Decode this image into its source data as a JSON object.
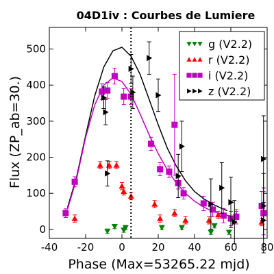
{
  "chart_data": {
    "type": "scatter",
    "title": "04D1iv : Courbes de Lumiere",
    "xlabel": "Phase (Max=53265.22 mjd)",
    "ylabel": "Flux (ZP_ab=30.)",
    "xlim": [
      -40,
      80
    ],
    "ylim": [
      -25,
      560
    ],
    "x_ticks": [
      -40,
      -20,
      0,
      20,
      40,
      60,
      80
    ],
    "y_ticks": [
      0,
      100,
      200,
      300,
      400,
      500
    ],
    "legend_position": "top-right",
    "vline_x": 5,
    "series": [
      {
        "name": "g (V2.2)",
        "marker": "triangle-down",
        "color": "#008000",
        "points": [
          {
            "x": -8,
            "y": -5,
            "err": 6
          },
          {
            "x": -4,
            "y": 8,
            "err": 6
          },
          {
            "x": 1,
            "y": -2,
            "err": 6
          },
          {
            "x": 2,
            "y": 5,
            "err": 6
          },
          {
            "x": 22,
            "y": 5,
            "err": 6
          },
          {
            "x": 33,
            "y": 5,
            "err": 6
          },
          {
            "x": 49,
            "y": -8,
            "err": 6
          },
          {
            "x": 51,
            "y": 10,
            "err": 6
          },
          {
            "x": 59,
            "y": -8,
            "err": 6
          }
        ]
      },
      {
        "name": "r (V2.2)",
        "marker": "triangle-up",
        "color": "#ff0000",
        "points": [
          {
            "x": -26,
            "y": 30,
            "err": 10
          },
          {
            "x": -12,
            "y": 178,
            "err": 10
          },
          {
            "x": -7,
            "y": 178,
            "err": 10
          },
          {
            "x": -3,
            "y": 178,
            "err": 10
          },
          {
            "x": 0,
            "y": 120,
            "err": 10
          },
          {
            "x": 1,
            "y": 105,
            "err": 10
          },
          {
            "x": 5,
            "y": 92,
            "err": 10
          },
          {
            "x": 18,
            "y": 70,
            "err": 10
          },
          {
            "x": 21,
            "y": 30,
            "err": 10
          },
          {
            "x": 29,
            "y": 45,
            "err": 10
          },
          {
            "x": 35,
            "y": 25,
            "err": 10
          },
          {
            "x": 48,
            "y": 25,
            "err": 10
          },
          {
            "x": 53,
            "y": 40,
            "err": 10
          },
          {
            "x": 63,
            "y": 40,
            "err": 10
          },
          {
            "x": 77,
            "y": 20,
            "err": 10
          }
        ]
      },
      {
        "name": "i (V2.2)",
        "marker": "square",
        "color": "#bf00bf",
        "points": [
          {
            "x": -31,
            "y": 45,
            "err": 12
          },
          {
            "x": -26,
            "y": 132,
            "err": 14
          },
          {
            "x": -11,
            "y": 382,
            "err": 22
          },
          {
            "x": -8,
            "y": 385,
            "err": 22
          },
          {
            "x": -4,
            "y": 425,
            "err": 22
          },
          {
            "x": 1,
            "y": 368,
            "err": 22
          },
          {
            "x": 5,
            "y": 368,
            "err": 22
          },
          {
            "x": 16,
            "y": 237,
            "err": 18
          },
          {
            "x": 21,
            "y": 167,
            "err": 18
          },
          {
            "x": 26,
            "y": 160,
            "err": 16
          },
          {
            "x": 29,
            "y": 290,
            "err": 140
          },
          {
            "x": 31,
            "y": 128,
            "err": 16
          },
          {
            "x": 34,
            "y": 100,
            "err": 16
          },
          {
            "x": 45,
            "y": 72,
            "err": 20
          },
          {
            "x": 50,
            "y": 55,
            "err": 20
          },
          {
            "x": 56,
            "y": 38,
            "err": 20
          },
          {
            "x": 60,
            "y": 30,
            "err": 20
          },
          {
            "x": 63,
            "y": 35,
            "err": 20
          },
          {
            "x": 77,
            "y": 65,
            "err": 40
          },
          {
            "x": 78,
            "y": 45,
            "err": 60
          }
        ]
      },
      {
        "name": "z (V2.2)",
        "marker": "triangle-right",
        "color": "#000000",
        "points": [
          {
            "x": -10,
            "y": 365,
            "err": 30
          },
          {
            "x": -9,
            "y": 325,
            "err": 35
          },
          {
            "x": -8,
            "y": 155,
            "err": 35
          },
          {
            "x": 5,
            "y": 445,
            "err": 40
          },
          {
            "x": 6,
            "y": 380,
            "err": 45
          },
          {
            "x": 15,
            "y": 475,
            "err": 45
          },
          {
            "x": 20,
            "y": 372,
            "err": 45
          },
          {
            "x": 31,
            "y": 148,
            "err": 60
          },
          {
            "x": 33,
            "y": 230,
            "err": 70
          },
          {
            "x": 49,
            "y": 70,
            "err": 70
          },
          {
            "x": 55,
            "y": 115,
            "err": 70
          },
          {
            "x": 60,
            "y": 75,
            "err": 70
          },
          {
            "x": 62,
            "y": 20,
            "err": 60
          },
          {
            "x": 78,
            "y": 195,
            "err": 120
          },
          {
            "x": 78,
            "y": 65,
            "err": 90
          },
          {
            "x": 78,
            "y": 25,
            "err": 90
          }
        ]
      }
    ],
    "fit_curves": [
      {
        "series": "z (V2.2)",
        "color": "#000000",
        "points": [
          [
            -30,
            60
          ],
          [
            -25,
            145
          ],
          [
            -20,
            260
          ],
          [
            -15,
            370
          ],
          [
            -10,
            450
          ],
          [
            -5,
            495
          ],
          [
            0,
            505
          ],
          [
            5,
            480
          ],
          [
            10,
            430
          ],
          [
            15,
            360
          ],
          [
            20,
            290
          ],
          [
            25,
            225
          ],
          [
            30,
            175
          ],
          [
            35,
            135
          ],
          [
            40,
            105
          ],
          [
            45,
            85
          ],
          [
            50,
            70
          ],
          [
            55,
            58
          ],
          [
            58,
            52
          ]
        ]
      },
      {
        "series": "i (V2.2)",
        "color": "#bf00bf",
        "points": [
          [
            -30,
            55
          ],
          [
            -25,
            140
          ],
          [
            -20,
            255
          ],
          [
            -15,
            345
          ],
          [
            -10,
            400
          ],
          [
            -5,
            420
          ],
          [
            0,
            410
          ],
          [
            5,
            375
          ],
          [
            10,
            320
          ],
          [
            15,
            262
          ],
          [
            20,
            210
          ],
          [
            25,
            165
          ],
          [
            30,
            128
          ],
          [
            35,
            100
          ],
          [
            40,
            78
          ],
          [
            45,
            62
          ],
          [
            50,
            50
          ],
          [
            55,
            42
          ],
          [
            60,
            37
          ],
          [
            64,
            34
          ]
        ]
      }
    ]
  }
}
